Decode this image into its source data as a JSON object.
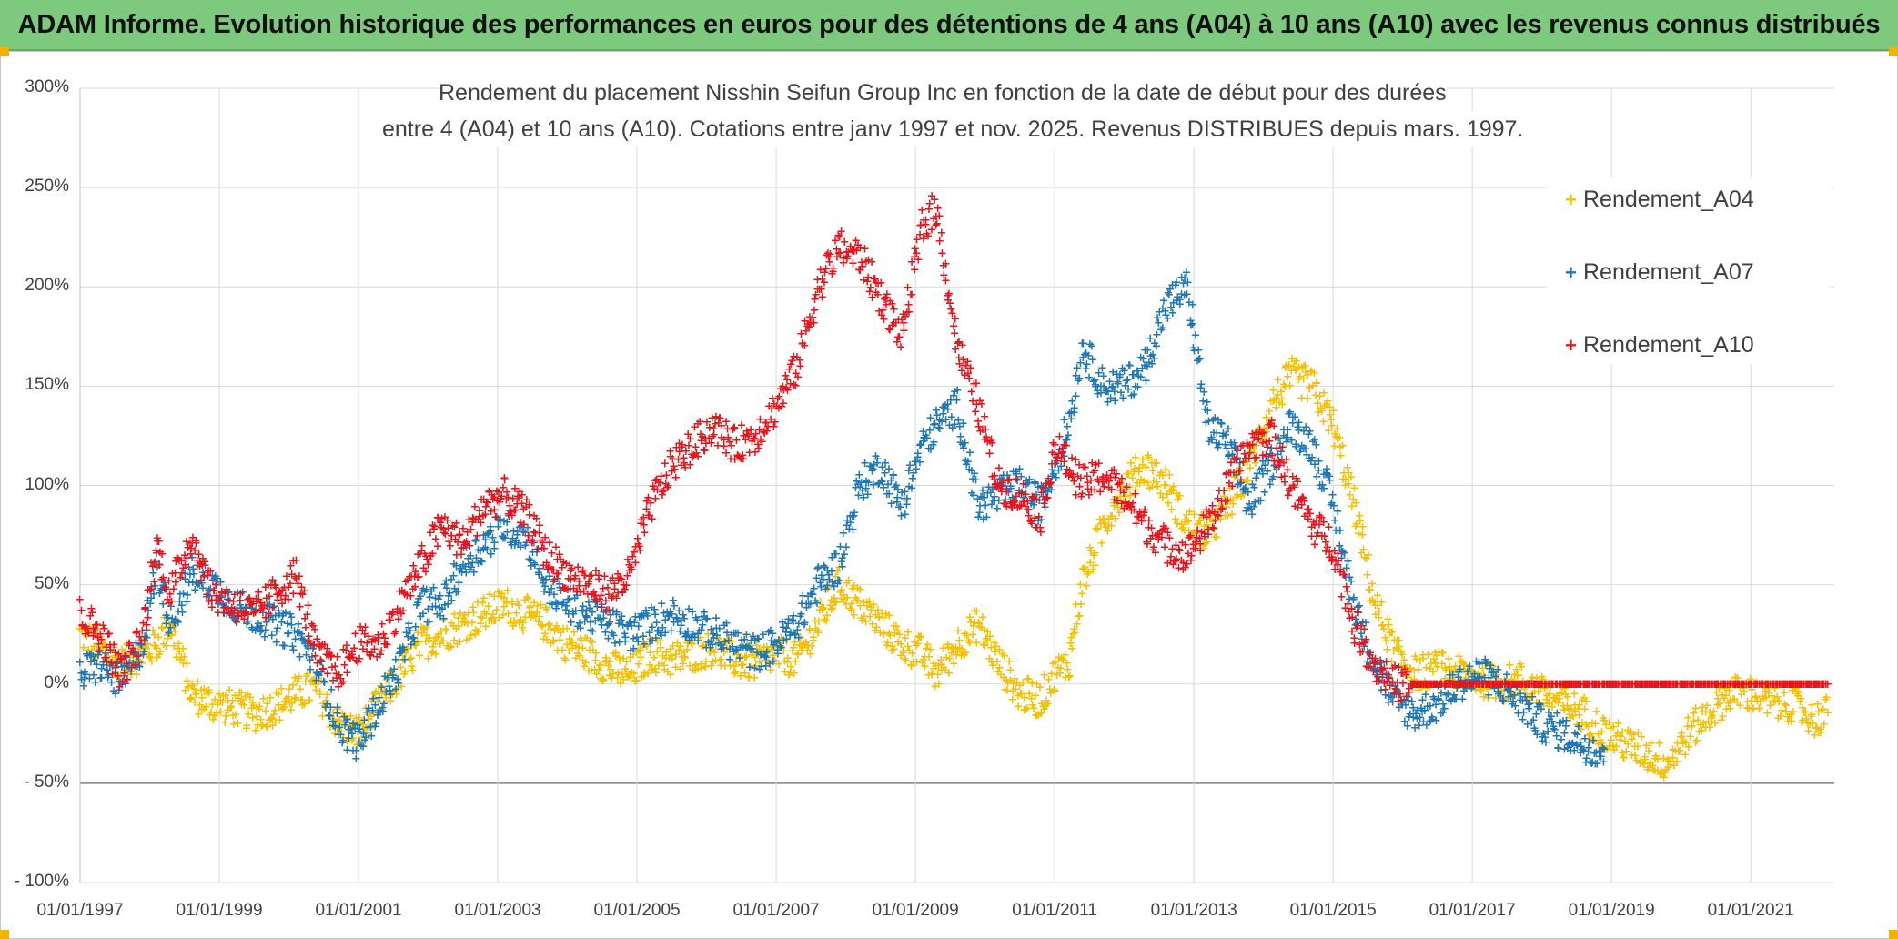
{
  "banner": {
    "title": "ADAM Informe. Evolution historique des performances en euros pour des détentions de 4 ans (A04) à 10 ans (A10) avec les revenus connus distribués"
  },
  "chart_data": {
    "type": "scatter",
    "title_line1": "Rendement du placement Nisshin Seifun Group Inc en fonction de la date de début pour des durées",
    "title_line2": "entre 4 (A04) et 10 ans (A10). Cotations entre janv 1997 et nov. 2025. Revenus DISTRIBUES depuis mars. 1997.",
    "xlabel": "",
    "ylabel": "",
    "xlim": [
      1997.0,
      2022.2
    ],
    "ylim": [
      -100,
      300
    ],
    "ytick_values": [
      -100,
      -50,
      0,
      50,
      100,
      150,
      200,
      250,
      300
    ],
    "ytick_labels": [
      "- 100%",
      "- 50%",
      "0%",
      "50%",
      "100%",
      "150%",
      "200%",
      "250%",
      "300%"
    ],
    "xtick_values": [
      1997,
      1999,
      2001,
      2003,
      2005,
      2007,
      2009,
      2011,
      2013,
      2015,
      2017,
      2019,
      2021
    ],
    "xtick_labels": [
      "01/01/1997",
      "01/01/1999",
      "01/01/2001",
      "01/01/2003",
      "01/01/2005",
      "01/01/2007",
      "01/01/2009",
      "01/01/2011",
      "01/01/2013",
      "01/01/2015",
      "01/01/2017",
      "01/01/2019",
      "01/01/2021"
    ],
    "legend_position": "top-right",
    "series": [
      {
        "name": "Rendement_A04",
        "color": "#f5c000",
        "x": [
          1997.0,
          1997.3,
          1997.6,
          1997.9,
          1998.1,
          1998.3,
          1998.6,
          1998.9,
          1999.2,
          1999.5,
          1999.8,
          2000.1,
          2000.4,
          2000.7,
          2001.0,
          2001.3,
          2001.6,
          2001.9,
          2002.2,
          2002.5,
          2002.8,
          2003.1,
          2003.4,
          2003.7,
          2004.0,
          2004.3,
          2004.6,
          2004.9,
          2005.2,
          2005.5,
          2005.8,
          2006.1,
          2006.4,
          2006.7,
          2007.0,
          2007.3,
          2007.6,
          2007.9,
          2008.2,
          2008.5,
          2008.8,
          2009.1,
          2009.3,
          2009.6,
          2009.9,
          2010.2,
          2010.5,
          2010.8,
          2011.0,
          2011.2,
          2011.4,
          2011.7,
          2012.0,
          2012.3,
          2012.6,
          2012.9,
          2013.2,
          2013.5,
          2013.8,
          2014.1,
          2014.4,
          2014.7,
          2015.0,
          2015.3,
          2015.6,
          2015.9,
          2016.2,
          2016.5,
          2016.8,
          2017.1,
          2017.4,
          2017.7,
          2018.0,
          2018.3,
          2018.6,
          2018.9,
          2019.2,
          2019.5,
          2019.8,
          2020.1,
          2020.4,
          2020.7,
          2021.0,
          2021.3,
          2021.6,
          2021.9,
          2022.1
        ],
        "y": [
          25,
          18,
          10,
          15,
          20,
          30,
          -5,
          -10,
          -12,
          -15,
          -12,
          -5,
          -2,
          -20,
          -25,
          -10,
          5,
          20,
          25,
          30,
          35,
          40,
          35,
          30,
          20,
          15,
          8,
          5,
          15,
          12,
          15,
          18,
          12,
          10,
          15,
          12,
          30,
          50,
          40,
          30,
          20,
          15,
          5,
          20,
          30,
          10,
          -5,
          -8,
          5,
          10,
          50,
          80,
          100,
          110,
          100,
          80,
          75,
          90,
          110,
          140,
          155,
          150,
          130,
          90,
          40,
          15,
          5,
          8,
          5,
          3,
          0,
          2,
          -5,
          -10,
          -15,
          -25,
          -30,
          -35,
          -40,
          -25,
          -15,
          -5,
          -5,
          -10,
          -10,
          -18,
          -15
        ]
      },
      {
        "name": "Rendement_A07",
        "color": "#1f77b4",
        "x": [
          1997.0,
          1997.3,
          1997.6,
          1997.9,
          1998.1,
          1998.3,
          1998.6,
          1998.9,
          1999.2,
          1999.5,
          1999.8,
          2000.1,
          2000.4,
          2000.7,
          2001.0,
          2001.3,
          2001.6,
          2001.9,
          2002.2,
          2002.5,
          2002.8,
          2003.1,
          2003.4,
          2003.7,
          2004.0,
          2004.3,
          2004.6,
          2004.9,
          2005.2,
          2005.5,
          2005.8,
          2006.1,
          2006.4,
          2006.7,
          2007.0,
          2007.3,
          2007.6,
          2007.9,
          2008.2,
          2008.5,
          2008.8,
          2009.1,
          2009.3,
          2009.6,
          2009.9,
          2010.2,
          2010.5,
          2010.8,
          2011.0,
          2011.2,
          2011.4,
          2011.7,
          2012.0,
          2012.3,
          2012.6,
          2012.9,
          2013.2,
          2013.5,
          2013.8,
          2014.1,
          2014.4,
          2014.7,
          2015.0,
          2015.3,
          2015.6,
          2015.9,
          2016.2,
          2016.5,
          2016.8,
          2017.1,
          2017.4,
          2017.7,
          2018.0,
          2018.3,
          2018.6,
          2018.9
        ],
        "y": [
          5,
          10,
          0,
          20,
          60,
          30,
          55,
          50,
          40,
          35,
          30,
          25,
          10,
          -20,
          -30,
          -10,
          10,
          40,
          40,
          60,
          70,
          80,
          75,
          50,
          40,
          35,
          30,
          25,
          30,
          35,
          30,
          25,
          20,
          15,
          20,
          30,
          50,
          60,
          100,
          110,
          90,
          120,
          130,
          140,
          90,
          95,
          100,
          90,
          110,
          130,
          170,
          150,
          150,
          160,
          190,
          200,
          130,
          120,
          90,
          110,
          130,
          120,
          90,
          40,
          10,
          -10,
          -15,
          -10,
          0,
          5,
          0,
          -10,
          -20,
          -25,
          -30,
          -35
        ]
      },
      {
        "name": "Rendement_A10",
        "color": "#e8141c",
        "x": [
          1997.0,
          1997.3,
          1997.6,
          1997.9,
          1998.1,
          1998.3,
          1998.6,
          1998.9,
          1999.2,
          1999.5,
          1999.8,
          2000.1,
          2000.4,
          2000.7,
          2001.0,
          2001.3,
          2001.6,
          2001.9,
          2002.2,
          2002.5,
          2002.8,
          2003.1,
          2003.4,
          2003.7,
          2004.0,
          2004.3,
          2004.6,
          2004.9,
          2005.2,
          2005.5,
          2005.8,
          2006.1,
          2006.4,
          2006.7,
          2007.0,
          2007.3,
          2007.6,
          2007.9,
          2008.2,
          2008.5,
          2008.8,
          2009.1,
          2009.3,
          2009.6,
          2009.9,
          2010.2,
          2010.5,
          2010.8,
          2011.0,
          2011.2,
          2011.4,
          2011.7,
          2012.0,
          2012.3,
          2012.6,
          2012.9,
          2013.2,
          2013.5,
          2013.8,
          2014.1,
          2014.4,
          2014.7,
          2015.0,
          2015.3,
          2015.6,
          2015.9,
          2016.2,
          2016.5,
          2016.8,
          2017.1,
          2017.4,
          2017.7,
          2018.0,
          2018.3,
          2018.6,
          2018.9,
          2019.2,
          2019.5,
          2019.8,
          2020.1,
          2020.4,
          2020.7,
          2021.0,
          2021.3,
          2021.6,
          2021.9,
          2022.1
        ],
        "y": [
          35,
          25,
          5,
          25,
          70,
          45,
          75,
          45,
          40,
          35,
          45,
          55,
          15,
          5,
          20,
          20,
          40,
          60,
          80,
          70,
          90,
          95,
          85,
          65,
          55,
          50,
          45,
          55,
          90,
          110,
          120,
          130,
          120,
          125,
          140,
          160,
          200,
          220,
          215,
          195,
          175,
          230,
          240,
          170,
          140,
          100,
          95,
          85,
          120,
          110,
          100,
          105,
          95,
          80,
          70,
          65,
          80,
          100,
          120,
          125,
          100,
          80,
          70,
          30,
          10,
          0,
          0,
          0,
          0,
          0,
          0,
          0,
          0,
          0,
          0,
          0,
          0,
          0,
          0,
          0,
          0,
          0,
          0,
          0,
          0,
          0,
          0
        ]
      }
    ]
  }
}
